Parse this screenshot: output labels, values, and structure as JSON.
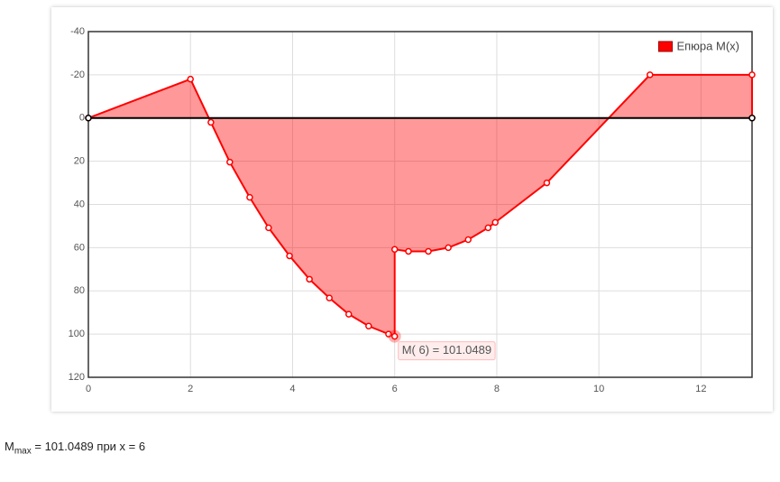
{
  "chart_data": {
    "type": "area",
    "xlim": [
      0,
      13
    ],
    "xticks": [
      0,
      2,
      4,
      6,
      8,
      10,
      12
    ],
    "ylim": [
      -40,
      120
    ],
    "yticks": [
      -40,
      -20,
      0,
      20,
      40,
      60,
      80,
      100,
      120
    ],
    "y_reversed": true,
    "grid": true,
    "legend": "top-right",
    "series": [
      {
        "name": "Епюра M(x)",
        "color": "#ff0000",
        "x": [
          0,
          2,
          2.4,
          2.77,
          3.16,
          3.53,
          3.94,
          4.33,
          4.72,
          5.1,
          5.49,
          5.88,
          6,
          6,
          6.27,
          6.66,
          7.05,
          7.44,
          7.83,
          7.97,
          8.98,
          11,
          13,
          13
        ],
        "values": [
          0,
          -18,
          2,
          20.4,
          36.7,
          50.8,
          63.8,
          74.6,
          83.3,
          90.8,
          96.3,
          100,
          101.0489,
          60.8,
          61.7,
          61.7,
          60,
          56.3,
          50.8,
          48.3,
          30,
          -20,
          -20,
          0
        ]
      },
      {
        "color": "#000000",
        "x": [
          0,
          13
        ],
        "values": [
          0,
          0
        ]
      }
    ],
    "highlight": {
      "series": 0,
      "index": 12
    },
    "tooltip": "M( 6) = 101.0489"
  },
  "footer": {
    "symbol": "M",
    "subscript": "max",
    "text": " = 101.0489 при x = 6"
  }
}
